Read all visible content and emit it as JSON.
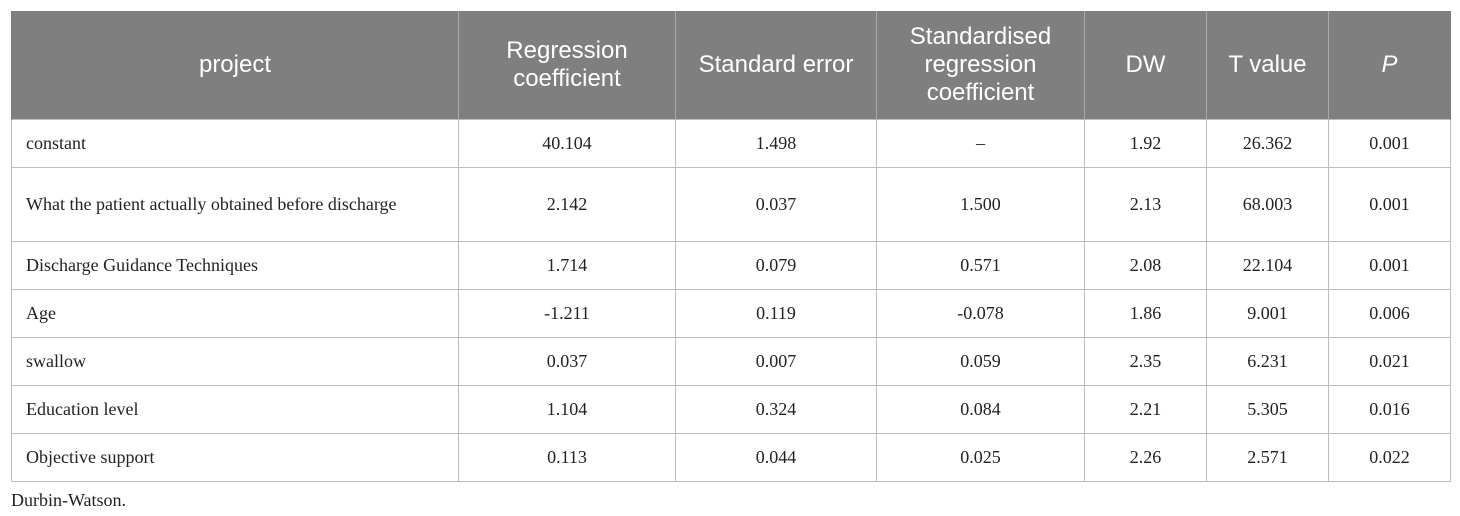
{
  "table": {
    "headers": [
      "project",
      "Regression coefficient",
      "Standard error",
      "Standardised regression coefficient",
      "DW",
      "T value",
      "P"
    ],
    "rows": [
      [
        "constant",
        "40.104",
        "1.498",
        "–",
        "1.92",
        "26.362",
        "0.001"
      ],
      [
        "What the patient actually obtained before discharge",
        "2.142",
        "0.037",
        "1.500",
        "2.13",
        "68.003",
        "0.001"
      ],
      [
        "Discharge Guidance Techniques",
        "1.714",
        "0.079",
        "0.571",
        "2.08",
        "22.104",
        "0.001"
      ],
      [
        "Age",
        "-1.211",
        "0.119",
        "-0.078",
        "1.86",
        "9.001",
        "0.006"
      ],
      [
        "swallow",
        "0.037",
        "0.007",
        "0.059",
        "2.35",
        "6.231",
        "0.021"
      ],
      [
        "Education level",
        "1.104",
        "0.324",
        "0.084",
        "2.21",
        "5.305",
        "0.016"
      ],
      [
        "Objective support",
        "0.113",
        "0.044",
        "0.025",
        "2.26",
        "2.571",
        "0.022"
      ]
    ]
  },
  "footnote": "Durbin-Watson.",
  "colors": {
    "header_background": "#7e7f7e",
    "header_text": "#ffffff",
    "grid_line": "#bdbdbd"
  }
}
